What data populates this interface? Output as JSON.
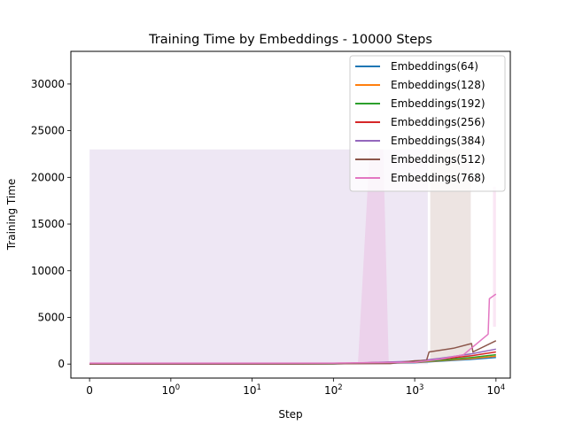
{
  "chart_data": {
    "type": "line",
    "title": "Training Time by Embeddings - 10000 Steps",
    "xlabel": "Step",
    "ylabel": "Training Time",
    "xscale": "symlog",
    "xlim": [
      -0.23,
      15000
    ],
    "ylim": [
      -1500,
      33500
    ],
    "grid": false,
    "legend_position": "upper-right",
    "xticks": [
      {
        "value": 0,
        "label": "0"
      },
      {
        "value": 1,
        "label": "10",
        "sup": "0"
      },
      {
        "value": 10,
        "label": "10",
        "sup": "1"
      },
      {
        "value": 100,
        "label": "10",
        "sup": "2"
      },
      {
        "value": 1000,
        "label": "10",
        "sup": "3"
      },
      {
        "value": 10000,
        "label": "10",
        "sup": "4"
      }
    ],
    "yticks": [
      {
        "value": 0,
        "label": "0"
      },
      {
        "value": 5000,
        "label": "5000"
      },
      {
        "value": 10000,
        "label": "10000"
      },
      {
        "value": 15000,
        "label": "15000"
      },
      {
        "value": 20000,
        "label": "20000"
      },
      {
        "value": 25000,
        "label": "25000"
      },
      {
        "value": 30000,
        "label": "30000"
      }
    ],
    "series": [
      {
        "name": "Embeddings(64)",
        "color": "#1f77b4",
        "points": [
          [
            0,
            0
          ],
          [
            100,
            20
          ],
          [
            1000,
            150
          ],
          [
            2000,
            300
          ],
          [
            5000,
            500
          ],
          [
            10000,
            700
          ]
        ]
      },
      {
        "name": "Embeddings(128)",
        "color": "#ff7f0e",
        "points": [
          [
            0,
            0
          ],
          [
            100,
            25
          ],
          [
            1000,
            180
          ],
          [
            2000,
            350
          ],
          [
            5000,
            600
          ],
          [
            10000,
            850
          ]
        ]
      },
      {
        "name": "Embeddings(192)",
        "color": "#2ca02c",
        "points": [
          [
            0,
            0
          ],
          [
            100,
            30
          ],
          [
            1000,
            220
          ],
          [
            2000,
            400
          ],
          [
            5000,
            700
          ],
          [
            10000,
            1000
          ]
        ]
      },
      {
        "name": "Embeddings(256)",
        "color": "#d62728",
        "points": [
          [
            0,
            0
          ],
          [
            100,
            35
          ],
          [
            1000,
            260
          ],
          [
            2000,
            500
          ],
          [
            5000,
            900
          ],
          [
            10000,
            1300
          ]
        ]
      },
      {
        "name": "Embeddings(384)",
        "color": "#9467bd",
        "points": [
          [
            0,
            0
          ],
          [
            100,
            40
          ],
          [
            1000,
            300
          ],
          [
            2000,
            600
          ],
          [
            5000,
            1100
          ],
          [
            10000,
            1600
          ]
        ]
      },
      {
        "name": "Embeddings(512)",
        "color": "#8c564b",
        "points": [
          [
            0,
            0
          ],
          [
            100,
            50
          ],
          [
            500,
            60
          ],
          [
            1000,
            350
          ],
          [
            1400,
            400
          ],
          [
            1500,
            1300
          ],
          [
            3000,
            1700
          ],
          [
            5000,
            2200
          ],
          [
            5200,
            1300
          ],
          [
            10000,
            2500
          ]
        ]
      },
      {
        "name": "Embeddings(768)",
        "color": "#e377c2",
        "points": [
          [
            0,
            100
          ],
          [
            100,
            100
          ],
          [
            1000,
            200
          ],
          [
            2000,
            500
          ],
          [
            4000,
            1000
          ],
          [
            8000,
            3200
          ],
          [
            8300,
            7000
          ],
          [
            10000,
            7500
          ]
        ]
      }
    ],
    "bands": [
      {
        "color": "#9467bd",
        "opacity": 0.16,
        "poly": [
          [
            0,
            23000
          ],
          [
            1450,
            23000
          ],
          [
            1450,
            0
          ],
          [
            0,
            0
          ]
        ]
      },
      {
        "color": "#e377c2",
        "opacity": 0.18,
        "poly": [
          [
            280,
            23000
          ],
          [
            410,
            23000
          ],
          [
            480,
            0
          ],
          [
            200,
            0
          ]
        ]
      },
      {
        "color": "#8c564b",
        "opacity": 0.16,
        "poly": [
          [
            1550,
            23000
          ],
          [
            4900,
            23000
          ],
          [
            4900,
            400
          ],
          [
            1550,
            400
          ]
        ]
      },
      {
        "color": "#e377c2",
        "opacity": 0.18,
        "poly": [
          [
            9200,
            19000
          ],
          [
            10000,
            19000
          ],
          [
            10000,
            4000
          ],
          [
            9200,
            4000
          ]
        ]
      }
    ]
  }
}
